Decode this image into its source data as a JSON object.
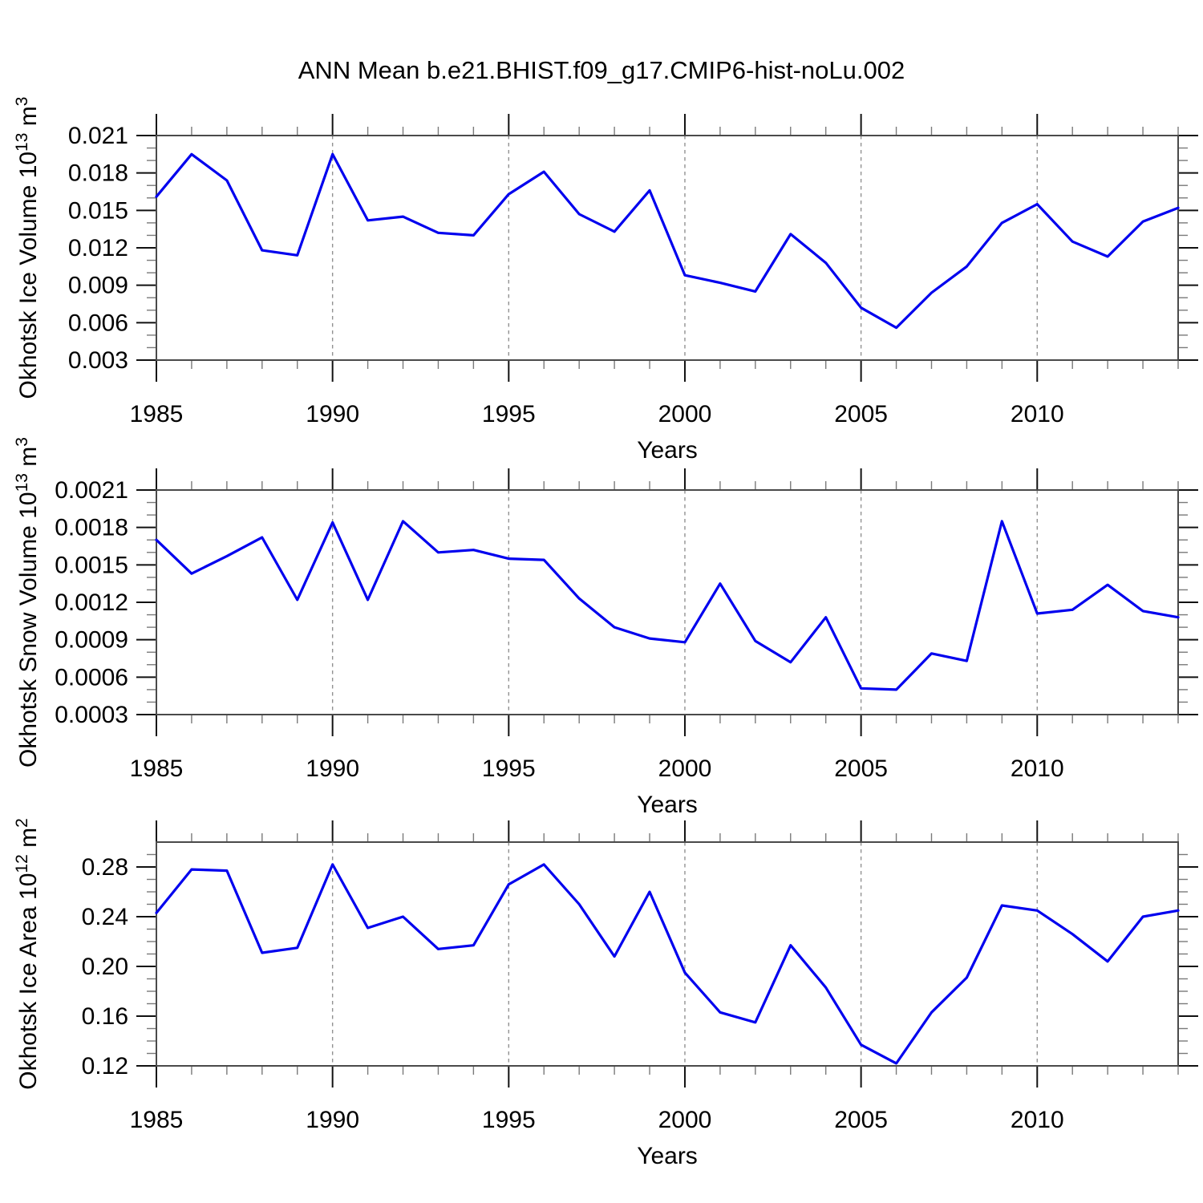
{
  "title": "ANN Mean b.e21.BHIST.f09_g17.CMIP6-hist-noLu.002",
  "colors": {
    "line": "#0000EE",
    "frame": "#4a4a4a",
    "major_tick": "#111111",
    "minor_tick": "#7a7a7a",
    "grid": "#919191",
    "text": "#000000",
    "background": "#ffffff"
  },
  "chart_data": [
    {
      "type": "line",
      "name": "okhotsk-ice-volume",
      "xlabel": "Years",
      "ylabel": "Okhotsk Ice Volume 10^13 m^3",
      "ylabel_parts": [
        {
          "text": "Okhotsk Ice Volume 10",
          "sup": false
        },
        {
          "text": "13",
          "sup": true
        },
        {
          "text": " m",
          "sup": false
        },
        {
          "text": "3",
          "sup": true
        }
      ],
      "x": [
        1985,
        1986,
        1987,
        1988,
        1989,
        1990,
        1991,
        1992,
        1993,
        1994,
        1995,
        1996,
        1997,
        1998,
        1999,
        2000,
        2001,
        2002,
        2003,
        2004,
        2005,
        2006,
        2007,
        2008,
        2009,
        2010,
        2011,
        2012,
        2013,
        2014
      ],
      "y": [
        0.0161,
        0.0195,
        0.0174,
        0.0118,
        0.0114,
        0.0195,
        0.0142,
        0.0145,
        0.0132,
        0.013,
        0.0163,
        0.0181,
        0.0147,
        0.0133,
        0.0166,
        0.0098,
        0.0092,
        0.0085,
        0.0131,
        0.0108,
        0.0072,
        0.0056,
        0.0084,
        0.0105,
        0.014,
        0.0155,
        0.0125,
        0.0113,
        0.0141,
        0.0152
      ],
      "ylim": [
        0.003,
        0.021
      ],
      "yticks_major": [
        0.021,
        0.018,
        0.015,
        0.012,
        0.009,
        0.006,
        0.003
      ],
      "ytick_labels": [
        "0.021",
        "0.018",
        "0.015",
        "0.012",
        "0.009",
        "0.006",
        "0.003"
      ],
      "y_minor_step": 0.001,
      "x_ticks_major": [
        1985,
        1990,
        1995,
        2000,
        2005,
        2010
      ],
      "x_minor_step": 1,
      "x_gridlines": [
        1990,
        1995,
        2000,
        2005,
        2010
      ],
      "grid": "vertical-dashed",
      "legend": "none"
    },
    {
      "type": "line",
      "name": "okhotsk-snow-volume",
      "xlabel": "Years",
      "ylabel": "Okhotsk Snow Volume 10^13 m^3",
      "ylabel_parts": [
        {
          "text": "Okhotsk Snow Volume 10",
          "sup": false
        },
        {
          "text": "13",
          "sup": true
        },
        {
          "text": " m",
          "sup": false
        },
        {
          "text": "3",
          "sup": true
        }
      ],
      "x": [
        1985,
        1986,
        1987,
        1988,
        1989,
        1990,
        1991,
        1992,
        1993,
        1994,
        1995,
        1996,
        1997,
        1998,
        1999,
        2000,
        2001,
        2002,
        2003,
        2004,
        2005,
        2006,
        2007,
        2008,
        2009,
        2010,
        2011,
        2012,
        2013,
        2014
      ],
      "y": [
        0.0017,
        0.00143,
        0.00157,
        0.00172,
        0.00122,
        0.00184,
        0.00122,
        0.00185,
        0.0016,
        0.00162,
        0.00155,
        0.00154,
        0.00123,
        0.001,
        0.00091,
        0.00088,
        0.00135,
        0.00089,
        0.00072,
        0.00108,
        0.00051,
        0.0005,
        0.00079,
        0.00073,
        0.00185,
        0.00111,
        0.00114,
        0.00134,
        0.00113,
        0.00108
      ],
      "ylim": [
        0.0003,
        0.0021
      ],
      "yticks_major": [
        0.0021,
        0.0018,
        0.0015,
        0.0012,
        0.0009,
        0.0006,
        0.0003
      ],
      "ytick_labels": [
        "0.0021",
        "0.0018",
        "0.0015",
        "0.0012",
        "0.0009",
        "0.0006",
        "0.0003"
      ],
      "y_minor_step": 0.0001,
      "x_ticks_major": [
        1985,
        1990,
        1995,
        2000,
        2005,
        2010
      ],
      "x_minor_step": 1,
      "x_gridlines": [
        1990,
        1995,
        2000,
        2005,
        2010
      ],
      "grid": "vertical-dashed",
      "legend": "none"
    },
    {
      "type": "line",
      "name": "okhotsk-ice-area",
      "xlabel": "Years",
      "ylabel": "Okhotsk Ice Area 10^12 m^2",
      "ylabel_parts": [
        {
          "text": "Okhotsk Ice Area 10",
          "sup": false
        },
        {
          "text": "12",
          "sup": true
        },
        {
          "text": " m",
          "sup": false
        },
        {
          "text": "2",
          "sup": true
        }
      ],
      "x": [
        1985,
        1986,
        1987,
        1988,
        1989,
        1990,
        1991,
        1992,
        1993,
        1994,
        1995,
        1996,
        1997,
        1998,
        1999,
        2000,
        2001,
        2002,
        2003,
        2004,
        2005,
        2006,
        2007,
        2008,
        2009,
        2010,
        2011,
        2012,
        2013,
        2014
      ],
      "y": [
        0.243,
        0.278,
        0.277,
        0.211,
        0.215,
        0.282,
        0.231,
        0.24,
        0.214,
        0.217,
        0.266,
        0.282,
        0.25,
        0.208,
        0.26,
        0.195,
        0.163,
        0.155,
        0.217,
        0.183,
        0.137,
        0.122,
        0.163,
        0.191,
        0.249,
        0.245,
        0.226,
        0.204,
        0.24,
        0.245
      ],
      "ylim": [
        0.12,
        0.3
      ],
      "yticks_major": [
        0.28,
        0.24,
        0.2,
        0.16,
        0.12
      ],
      "ytick_labels": [
        "0.28",
        "0.24",
        "0.20",
        "0.16",
        "0.12"
      ],
      "y_minor_step": 0.01,
      "x_ticks_major": [
        1985,
        1990,
        1995,
        2000,
        2005,
        2010
      ],
      "x_minor_step": 1,
      "x_gridlines": [
        1990,
        1995,
        2000,
        2005,
        2010
      ],
      "grid": "vertical-dashed",
      "legend": "none"
    }
  ]
}
